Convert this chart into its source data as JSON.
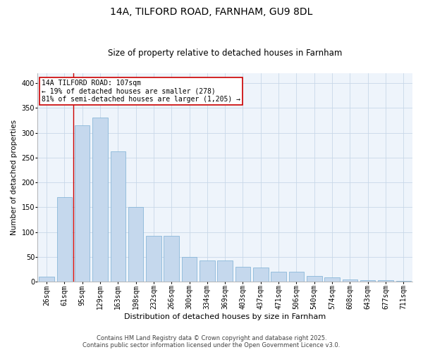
{
  "title": "14A, TILFORD ROAD, FARNHAM, GU9 8DL",
  "subtitle": "Size of property relative to detached houses in Farnham",
  "xlabel": "Distribution of detached houses by size in Farnham",
  "ylabel": "Number of detached properties",
  "bins": [
    "26sqm",
    "61sqm",
    "95sqm",
    "129sqm",
    "163sqm",
    "198sqm",
    "232sqm",
    "266sqm",
    "300sqm",
    "334sqm",
    "369sqm",
    "403sqm",
    "437sqm",
    "471sqm",
    "506sqm",
    "540sqm",
    "574sqm",
    "608sqm",
    "643sqm",
    "677sqm",
    "711sqm"
  ],
  "bar_heights": [
    10,
    170,
    315,
    330,
    263,
    150,
    92,
    92,
    50,
    43,
    43,
    30,
    28,
    20,
    20,
    12,
    8,
    4,
    3,
    3,
    2
  ],
  "bar_color": "#c5d8ed",
  "bar_edge_color": "#7bafd4",
  "grid_color": "#c8d8e8",
  "background_color": "#eef4fb",
  "fig_background": "#ffffff",
  "vline_color": "#cc0000",
  "vline_x_index": 1.5,
  "annotation_text": "14A TILFORD ROAD: 107sqm\n← 19% of detached houses are smaller (278)\n81% of semi-detached houses are larger (1,205) →",
  "annotation_box_color": "#ffffff",
  "annotation_box_edge_color": "#cc0000",
  "footer_line1": "Contains HM Land Registry data © Crown copyright and database right 2025.",
  "footer_line2": "Contains public sector information licensed under the Open Government Licence v3.0.",
  "ylim": [
    0,
    420
  ],
  "yticks": [
    0,
    50,
    100,
    150,
    200,
    250,
    300,
    350,
    400
  ],
  "title_fontsize": 10,
  "subtitle_fontsize": 8.5,
  "xlabel_fontsize": 8,
  "ylabel_fontsize": 7.5,
  "tick_fontsize": 7,
  "annotation_fontsize": 7,
  "footer_fontsize": 6
}
